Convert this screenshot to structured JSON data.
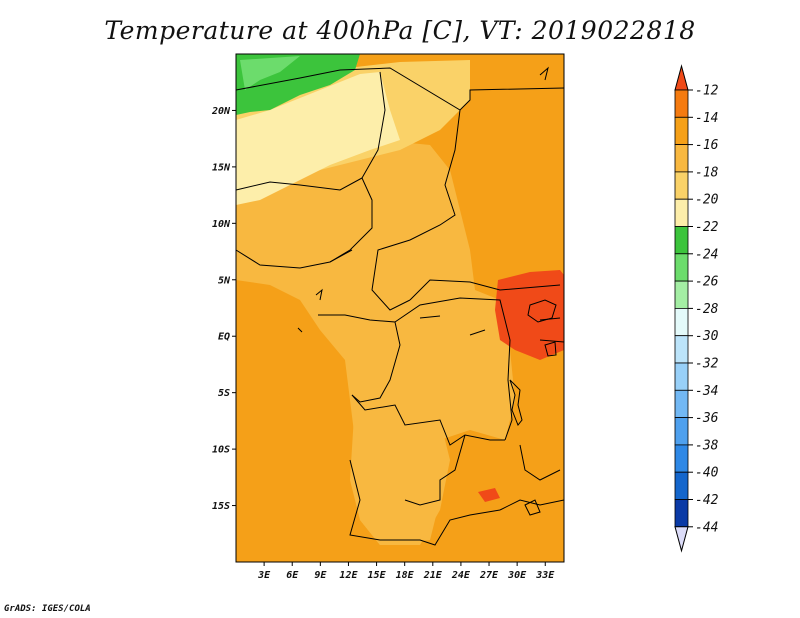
{
  "title": "Temperature at 400hPa [C], VT: 2019022818",
  "credit": "GrADS: IGES/COLA",
  "map": {
    "lon_range": [
      0,
      35
    ],
    "lat_range": [
      -20,
      25
    ],
    "lat_labels": [
      "20N",
      "15N",
      "10N",
      "5N",
      "EQ",
      "5S",
      "10S",
      "15S"
    ],
    "lon_labels": [
      "3E",
      "6E",
      "9E",
      "12E",
      "15E",
      "18E",
      "21E",
      "24E",
      "27E",
      "30E",
      "33E"
    ]
  },
  "colorbar": {
    "labels": [
      "-12",
      "-14",
      "-16",
      "-18",
      "-20",
      "-22",
      "-24",
      "-26",
      "-28",
      "-30",
      "-32",
      "-34",
      "-36",
      "-38",
      "-40",
      "-42",
      "-44"
    ],
    "colors": [
      "#f04a18",
      "#f57b10",
      "#f5a018",
      "#f8b840",
      "#fad268",
      "#fdeeaa",
      "#3cc43c",
      "#6cdc6c",
      "#a4eea4",
      "#e4fafa",
      "#bce4fa",
      "#98d0f8",
      "#72b8f4",
      "#4ea0ee",
      "#2e88e6",
      "#1466cc",
      "#0a3aa6",
      "#0a1a78"
    ],
    "top_arrow_color": "#f04a18",
    "bottom_arrow_color": "#dcdcf8"
  },
  "fills": {
    "base": "#f5a018",
    "central": "#f8b840",
    "north": "#fdeeaa",
    "north_mid": "#fad268",
    "green": "#3cc43c",
    "green_light": "#6cdc6c",
    "warm": "#f04a18",
    "borders": "#000000"
  }
}
